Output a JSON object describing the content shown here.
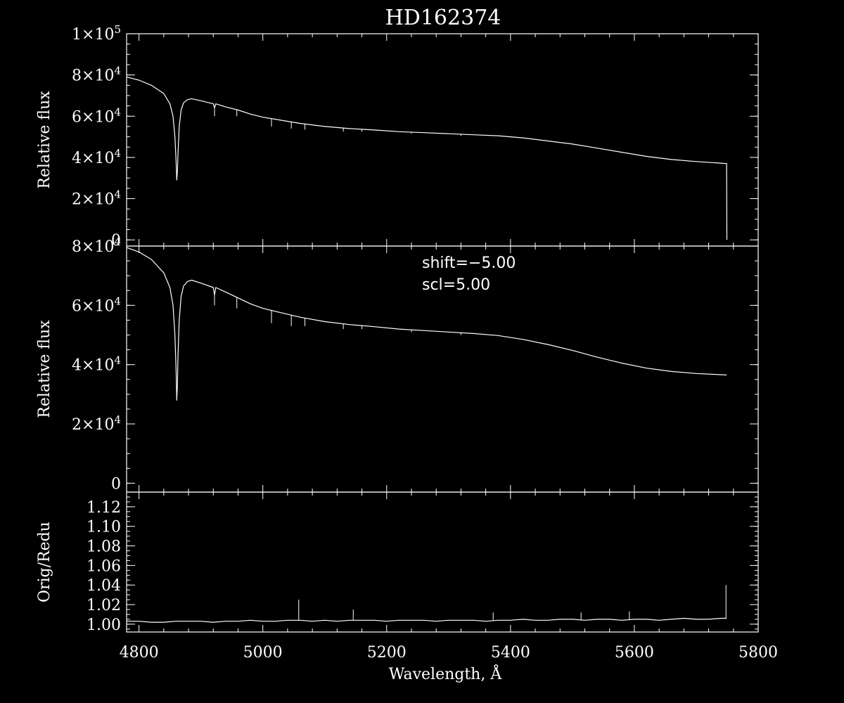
{
  "chart_data": [
    {
      "panel": "top",
      "type": "line",
      "title": "HD162374",
      "ylabel": "Relative flux",
      "xlim": [
        4780,
        5800
      ],
      "ylim": [
        -3000,
        100000
      ],
      "yticks": [
        {
          "value": 100000,
          "mant": "1",
          "exp": "5"
        },
        {
          "value": 80000,
          "mant": "8",
          "exp": "4"
        },
        {
          "value": 60000,
          "mant": "6",
          "exp": "4"
        },
        {
          "value": 40000,
          "mant": "4",
          "exp": "4"
        },
        {
          "value": 20000,
          "mant": "2",
          "exp": "4"
        },
        {
          "value": 0,
          "mant": "0",
          "exp": ""
        }
      ],
      "x": [
        4780,
        4800,
        4820,
        4840,
        4850,
        4855,
        4858,
        4860,
        4861,
        4862,
        4863,
        4865,
        4868,
        4872,
        4878,
        4885,
        4900,
        4920,
        4922,
        4924,
        4940,
        4960,
        4980,
        5000,
        5030,
        5060,
        5100,
        5140,
        5180,
        5220,
        5260,
        5300,
        5340,
        5380,
        5420,
        5460,
        5500,
        5540,
        5580,
        5620,
        5660,
        5700,
        5740,
        5749,
        5749.5
      ],
      "values": [
        79000,
        77500,
        75000,
        71000,
        66000,
        60000,
        50000,
        38000,
        29000,
        33000,
        42000,
        55000,
        63000,
        66500,
        68000,
        68500,
        67500,
        66000,
        64000,
        66000,
        64500,
        63000,
        61000,
        59500,
        58000,
        56500,
        55000,
        54000,
        53300,
        52500,
        52000,
        51500,
        51000,
        50500,
        49500,
        48000,
        46500,
        44500,
        42500,
        40500,
        39000,
        38000,
        37200,
        37000,
        0
      ],
      "spikes": [
        {
          "x": 4922,
          "y": 60000
        },
        {
          "x": 4958,
          "y": 60000
        },
        {
          "x": 5014,
          "y": 55000
        },
        {
          "x": 5046,
          "y": 54000
        },
        {
          "x": 5068,
          "y": 53500
        },
        {
          "x": 5130,
          "y": 52500
        },
        {
          "x": 5160,
          "y": 52500
        },
        {
          "x": 5240,
          "y": 51500
        },
        {
          "x": 5320,
          "y": 50500
        }
      ]
    },
    {
      "panel": "middle",
      "type": "line",
      "ylabel": "Relative flux",
      "annotations": [
        "shift=-5.00",
        "scl=5.00"
      ],
      "xlim": [
        4780,
        5800
      ],
      "ylim": [
        -3000,
        80000
      ],
      "yticks": [
        {
          "value": 80000,
          "mant": "8",
          "exp": "4"
        },
        {
          "value": 60000,
          "mant": "6",
          "exp": "4"
        },
        {
          "value": 40000,
          "mant": "4",
          "exp": "4"
        },
        {
          "value": 20000,
          "mant": "2",
          "exp": "4"
        },
        {
          "value": 0,
          "mant": "0",
          "exp": ""
        }
      ],
      "x": [
        4780,
        4800,
        4820,
        4840,
        4850,
        4855,
        4858,
        4860,
        4861,
        4862,
        4863,
        4865,
        4868,
        4872,
        4878,
        4885,
        4900,
        4920,
        4922,
        4924,
        4940,
        4960,
        4980,
        5000,
        5030,
        5060,
        5100,
        5140,
        5180,
        5220,
        5260,
        5300,
        5340,
        5380,
        5420,
        5460,
        5500,
        5540,
        5580,
        5620,
        5660,
        5700,
        5740,
        5749
      ],
      "values": [
        79500,
        78000,
        75500,
        71000,
        66000,
        60000,
        50000,
        38000,
        28000,
        33000,
        43000,
        55000,
        63000,
        66500,
        68000,
        68500,
        67500,
        66000,
        63500,
        66000,
        64500,
        62500,
        60500,
        59000,
        57500,
        56000,
        54500,
        53500,
        52800,
        52000,
        51500,
        51000,
        50500,
        49800,
        48500,
        46800,
        44800,
        42500,
        40500,
        38800,
        37700,
        37000,
        36600,
        36500
      ],
      "spikes": [
        {
          "x": 4922,
          "y": 60000
        },
        {
          "x": 4958,
          "y": 59000
        },
        {
          "x": 5014,
          "y": 54000
        },
        {
          "x": 5046,
          "y": 53000
        },
        {
          "x": 5068,
          "y": 53000
        },
        {
          "x": 5130,
          "y": 52000
        },
        {
          "x": 5160,
          "y": 52000
        },
        {
          "x": 5240,
          "y": 51000
        },
        {
          "x": 5320,
          "y": 50000
        }
      ]
    },
    {
      "panel": "bottom",
      "type": "line",
      "ylabel": "Orig/Redu",
      "xlabel": "Wavelength, Å",
      "xlim": [
        4780,
        5800
      ],
      "ylim": [
        0.992,
        1.135
      ],
      "yticks": [
        {
          "value": 1.12,
          "label": "1.12"
        },
        {
          "value": 1.1,
          "label": "1.10"
        },
        {
          "value": 1.08,
          "label": "1.08"
        },
        {
          "value": 1.06,
          "label": "1.06"
        },
        {
          "value": 1.04,
          "label": "1.04"
        },
        {
          "value": 1.02,
          "label": "1.02"
        },
        {
          "value": 1.0,
          "label": "1.00"
        }
      ],
      "xticks": [
        {
          "value": 4800,
          "label": "4800"
        },
        {
          "value": 5000,
          "label": "5000"
        },
        {
          "value": 5200,
          "label": "5200"
        },
        {
          "value": 5400,
          "label": "5400"
        },
        {
          "value": 5600,
          "label": "5600"
        },
        {
          "value": 5800,
          "label": "5800"
        }
      ],
      "x": [
        4780,
        4800,
        4820,
        4840,
        4860,
        4880,
        4900,
        4920,
        4940,
        4960,
        4980,
        5000,
        5020,
        5040,
        5060,
        5080,
        5100,
        5120,
        5140,
        5160,
        5180,
        5200,
        5220,
        5240,
        5260,
        5280,
        5300,
        5320,
        5340,
        5360,
        5380,
        5400,
        5420,
        5440,
        5460,
        5480,
        5500,
        5520,
        5540,
        5560,
        5580,
        5600,
        5620,
        5640,
        5660,
        5680,
        5700,
        5720,
        5740,
        5749
      ],
      "values": [
        1.003,
        1.003,
        1.002,
        1.002,
        1.003,
        1.003,
        1.003,
        1.002,
        1.003,
        1.003,
        1.004,
        1.003,
        1.003,
        1.004,
        1.004,
        1.003,
        1.004,
        1.003,
        1.004,
        1.004,
        1.004,
        1.003,
        1.004,
        1.004,
        1.004,
        1.003,
        1.004,
        1.004,
        1.004,
        1.003,
        1.004,
        1.004,
        1.005,
        1.004,
        1.004,
        1.005,
        1.005,
        1.004,
        1.005,
        1.005,
        1.004,
        1.005,
        1.005,
        1.004,
        1.005,
        1.006,
        1.005,
        1.005,
        1.006,
        1.006
      ],
      "spikes": [
        {
          "x": 5058,
          "y": 1.025
        },
        {
          "x": 5146,
          "y": 1.015
        },
        {
          "x": 5372,
          "y": 1.012
        },
        {
          "x": 5514,
          "y": 1.012
        },
        {
          "x": 5592,
          "y": 1.013
        },
        {
          "x": 5748,
          "y": 1.04
        }
      ]
    }
  ]
}
